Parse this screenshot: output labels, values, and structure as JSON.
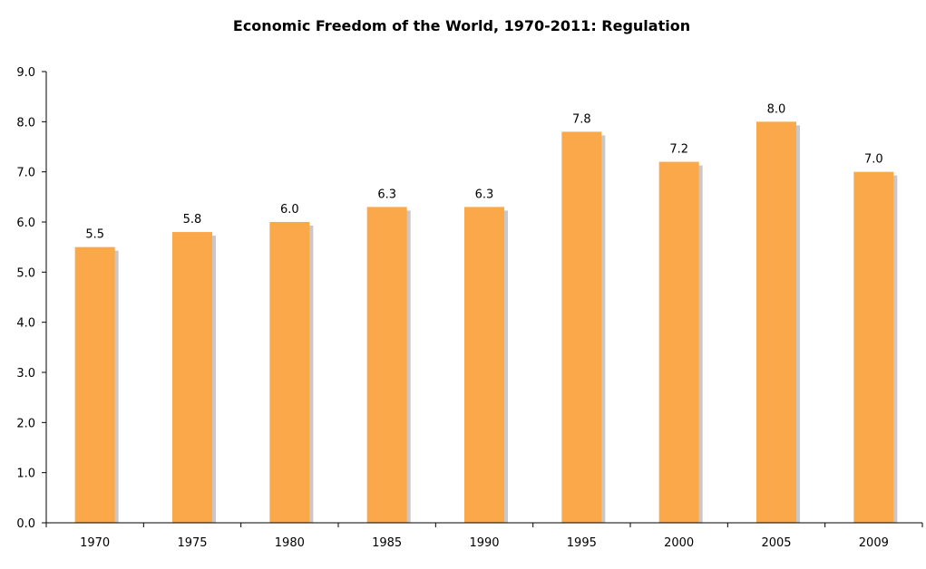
{
  "chart_data": {
    "type": "bar",
    "title": "Economic Freedom of the World, 1970-2011: Regulation",
    "xlabel": "",
    "ylabel": "",
    "categories": [
      "1970",
      "1975",
      "1980",
      "1985",
      "1990",
      "1995",
      "2000",
      "2005",
      "2009"
    ],
    "values": [
      5.5,
      5.8,
      6.0,
      6.3,
      6.3,
      7.8,
      7.2,
      8.0,
      7.0
    ],
    "data_labels": [
      "5.5",
      "5.8",
      "6.0",
      "6.3",
      "6.3",
      "7.8",
      "7.2",
      "8.0",
      "7.0"
    ],
    "ylim": [
      0,
      9
    ],
    "yticks": [
      "0.0",
      "1.0",
      "2.0",
      "3.0",
      "4.0",
      "5.0",
      "6.0",
      "7.0",
      "8.0",
      "9.0"
    ],
    "grid": false,
    "legend": "none",
    "colors": {
      "bar": "#FBA84A",
      "shadow": "#C8C8C8"
    }
  }
}
